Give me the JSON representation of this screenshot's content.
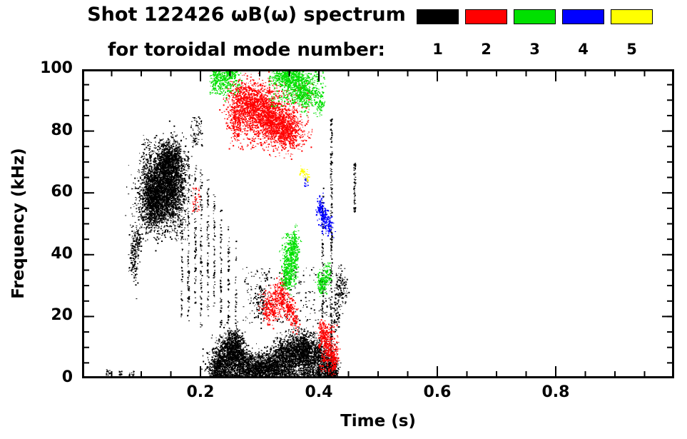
{
  "header": {
    "title": "Shot 122426 ωB(ω) spectrum",
    "subtitle": "for toroidal mode number:"
  },
  "legend": [
    {
      "label": "1",
      "color": "#000000"
    },
    {
      "label": "2",
      "color": "#ff0000"
    },
    {
      "label": "3",
      "color": "#00e000"
    },
    {
      "label": "4",
      "color": "#0000ff"
    },
    {
      "label": "5",
      "color": "#ffff00"
    }
  ],
  "chart_data": {
    "type": "scatter",
    "title": "Shot 122426 ωB(ω) spectrum",
    "subtitle": "for toroidal mode number:",
    "xlabel": "Time (s)",
    "ylabel": "Frequency (kHz)",
    "xlim": [
      0,
      1.0
    ],
    "ylim": [
      0,
      100
    ],
    "xticks": [
      0.2,
      0.4,
      0.6,
      0.8
    ],
    "xtick_labels": [
      "0.2",
      "0.4",
      "0.6",
      "0.8"
    ],
    "x_minor_step": 0.05,
    "yticks": [
      0,
      20,
      40,
      60,
      80,
      100
    ],
    "ytick_labels": [
      "0",
      "20",
      "40",
      "60",
      "80",
      "100"
    ],
    "y_minor_step": 5,
    "grid": false,
    "legend_position": "top-right",
    "modes": [
      {
        "n": 1,
        "color": "#000000"
      },
      {
        "n": 2,
        "color": "#ff0000"
      },
      {
        "n": 3,
        "color": "#00e000"
      },
      {
        "n": 4,
        "color": "#0000ff"
      },
      {
        "n": 5,
        "color": "#ffff00"
      }
    ],
    "cluster_format": "[mode, kind(g=gaussian:cx,cy,sx,sy | u=uniform:x0,x1,y0,y1), a, b, c, d, n_points] with time in s, frequency in kHz",
    "clusters": [
      [
        1,
        "g",
        0.132,
        61,
        0.018,
        5.5,
        2200
      ],
      [
        1,
        "g",
        0.146,
        70,
        0.012,
        3.5,
        900
      ],
      [
        1,
        "g",
        0.118,
        57,
        0.01,
        4,
        600
      ],
      [
        1,
        "g",
        0.155,
        62,
        0.008,
        6,
        500
      ],
      [
        1,
        "g",
        0.087,
        40,
        0.004,
        4.5,
        160
      ],
      [
        1,
        "g",
        0.093,
        45,
        0.003,
        2,
        60
      ],
      [
        1,
        "u",
        0.1,
        0.175,
        45,
        78,
        400
      ],
      [
        1,
        "u",
        0.183,
        0.202,
        75,
        85,
        70
      ],
      [
        1,
        "u",
        0.1665,
        0.169,
        20,
        72,
        90
      ],
      [
        1,
        "u",
        0.177,
        0.18,
        18,
        74,
        100
      ],
      [
        1,
        "u",
        0.189,
        0.192,
        24,
        70,
        80
      ],
      [
        1,
        "u",
        0.199,
        0.202,
        15,
        68,
        90
      ],
      [
        1,
        "u",
        0.21,
        0.213,
        20,
        65,
        70
      ],
      [
        1,
        "u",
        0.221,
        0.2235,
        22,
        60,
        60
      ],
      [
        1,
        "u",
        0.2325,
        0.235,
        18,
        55,
        60
      ],
      [
        1,
        "u",
        0.2455,
        0.248,
        14,
        50,
        55
      ],
      [
        1,
        "u",
        0.258,
        0.26,
        12,
        45,
        40
      ],
      [
        1,
        "u",
        0.4185,
        0.4215,
        2,
        85,
        200
      ],
      [
        1,
        "u",
        0.404,
        0.407,
        20,
        62,
        80
      ],
      [
        1,
        "u",
        0.458,
        0.461,
        54,
        70,
        70
      ],
      [
        1,
        "g",
        0.228,
        4,
        0.009,
        2.5,
        450
      ],
      [
        1,
        "g",
        0.247,
        8,
        0.011,
        3.5,
        800
      ],
      [
        1,
        "g",
        0.259,
        10,
        0.007,
        3,
        450
      ],
      [
        1,
        "g",
        0.272,
        5,
        0.009,
        2.5,
        400
      ],
      [
        1,
        "g",
        0.292,
        3.5,
        0.012,
        2,
        450
      ],
      [
        1,
        "g",
        0.315,
        4,
        0.012,
        2.5,
        450
      ],
      [
        1,
        "g",
        0.335,
        6,
        0.011,
        3,
        550
      ],
      [
        1,
        "g",
        0.355,
        8,
        0.013,
        3.5,
        800
      ],
      [
        1,
        "g",
        0.374,
        9,
        0.009,
        3,
        550
      ],
      [
        1,
        "g",
        0.392,
        7,
        0.009,
        3.5,
        450
      ],
      [
        1,
        "g",
        0.408,
        5,
        0.008,
        3,
        350
      ],
      [
        1,
        "g",
        0.421,
        3,
        0.006,
        2.5,
        250
      ],
      [
        1,
        "u",
        0.215,
        0.43,
        0.5,
        3,
        600
      ],
      [
        1,
        "u",
        0.27,
        0.42,
        18,
        36,
        220
      ],
      [
        1,
        "g",
        0.3,
        25,
        0.006,
        3,
        90
      ],
      [
        1,
        "g",
        0.437,
        30,
        0.005,
        3,
        130
      ],
      [
        1,
        "g",
        0.428,
        22,
        0.004,
        4,
        80
      ],
      [
        1,
        "u",
        0.04,
        0.05,
        1,
        3,
        18
      ],
      [
        1,
        "u",
        0.062,
        0.068,
        1,
        2.5,
        12
      ],
      [
        1,
        "u",
        0.078,
        0.088,
        1,
        2.5,
        14
      ],
      [
        2,
        "g",
        0.295,
        87,
        0.022,
        4,
        1300
      ],
      [
        2,
        "g",
        0.325,
        83,
        0.015,
        3.5,
        700
      ],
      [
        2,
        "g",
        0.347,
        80,
        0.012,
        3,
        500
      ],
      [
        2,
        "g",
        0.27,
        91,
        0.012,
        3,
        300
      ],
      [
        2,
        "u",
        0.245,
        0.39,
        74,
        96,
        350
      ],
      [
        2,
        "g",
        0.258,
        83,
        0.006,
        3,
        150
      ],
      [
        2,
        "g",
        0.315,
        23,
        0.007,
        2.5,
        220
      ],
      [
        2,
        "g",
        0.333,
        27,
        0.007,
        2.5,
        220
      ],
      [
        2,
        "g",
        0.349,
        23,
        0.005,
        2,
        130
      ],
      [
        2,
        "g",
        0.358,
        19,
        0.004,
        2,
        70
      ],
      [
        2,
        "g",
        0.405,
        15,
        0.004,
        2.5,
        110
      ],
      [
        2,
        "g",
        0.414,
        11,
        0.005,
        3,
        180
      ],
      [
        2,
        "g",
        0.424,
        6,
        0.004,
        2.5,
        140
      ],
      [
        2,
        "u",
        0.398,
        0.432,
        2,
        18,
        120
      ],
      [
        2,
        "u",
        0.185,
        0.198,
        54,
        62,
        40
      ],
      [
        3,
        "g",
        0.226,
        97,
        0.005,
        2,
        110
      ],
      [
        3,
        "g",
        0.239,
        96,
        0.005,
        2.5,
        100
      ],
      [
        3,
        "g",
        0.253,
        98.5,
        0.005,
        1.5,
        80
      ],
      [
        3,
        "u",
        0.215,
        0.27,
        92,
        100,
        120
      ],
      [
        3,
        "g",
        0.344,
        98,
        0.012,
        1.8,
        350
      ],
      [
        3,
        "g",
        0.363,
        95,
        0.01,
        2.5,
        350
      ],
      [
        3,
        "g",
        0.378,
        92.5,
        0.007,
        2.5,
        220
      ],
      [
        3,
        "u",
        0.315,
        0.41,
        88,
        100,
        250
      ],
      [
        3,
        "g",
        0.4,
        89,
        0.004,
        2,
        70
      ],
      [
        3,
        "g",
        0.35,
        38,
        0.006,
        3.5,
        300
      ],
      [
        3,
        "g",
        0.357,
        43,
        0.004,
        2.5,
        130
      ],
      [
        3,
        "g",
        0.344,
        33,
        0.004,
        2,
        90
      ],
      [
        3,
        "u",
        0.34,
        0.365,
        30,
        47,
        100
      ],
      [
        3,
        "g",
        0.404,
        31,
        0.004,
        2.2,
        130
      ],
      [
        3,
        "g",
        0.413,
        33.5,
        0.004,
        2,
        80
      ],
      [
        4,
        "g",
        0.402,
        55,
        0.0035,
        1.8,
        110
      ],
      [
        4,
        "g",
        0.409,
        52,
        0.0035,
        1.8,
        110
      ],
      [
        4,
        "g",
        0.417,
        49.5,
        0.003,
        1.5,
        60
      ],
      [
        4,
        "u",
        0.375,
        0.381,
        62,
        65,
        20
      ],
      [
        5,
        "g",
        0.372,
        67,
        0.003,
        1,
        28
      ],
      [
        5,
        "g",
        0.379,
        65,
        0.0025,
        1,
        22
      ]
    ]
  }
}
